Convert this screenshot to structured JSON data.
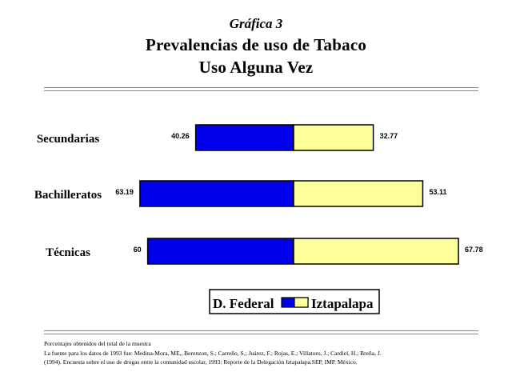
{
  "title": {
    "super": "Gráfica 3",
    "main": "Prevalencias de uso de Tabaco",
    "sub": "Uso Alguna Vez"
  },
  "chart_data": {
    "type": "bar",
    "orientation": "horizontal-diverging",
    "categories": [
      "Secundarias",
      "Bachilleratos",
      "Técnicas"
    ],
    "series": [
      {
        "name": "D. Federal",
        "values": [
          40.26,
          63.19,
          60
        ],
        "labels": [
          "40.26",
          "63.19",
          "60"
        ],
        "color": "#0000ee",
        "side": "left"
      },
      {
        "name": "Iztapalapa",
        "values": [
          32.77,
          53.11,
          67.78
        ],
        "labels": [
          "32.77",
          "53.11",
          "67.78"
        ],
        "color": "#ffff99",
        "side": "right"
      }
    ],
    "xlim": [
      0,
      70
    ],
    "grid": false,
    "legend": "bottom-center"
  },
  "footnotes": [
    "Porcentajes obtenidos del total de la muestra",
    "La fuente para los datos de 1993 fue: Medina-Mora, ME,, Berenzon, S.; Carreño, S.; Juárez, F.; Rojas, E.; Villatoro, J.; Cardiel, H.; Breña, J.",
    "(1994). Encuesta sobre el uso de drogas entre la comunidad escolar, 1993: Reporte de la Delegación Iztapalapa.SEP, IMP. México."
  ]
}
